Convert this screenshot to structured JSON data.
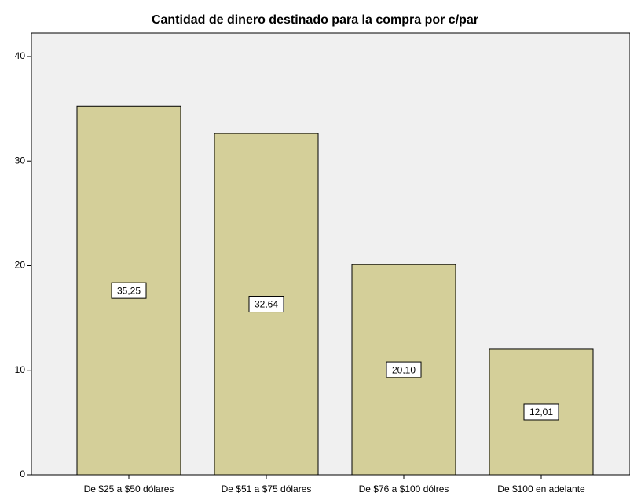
{
  "chart_data": {
    "type": "bar",
    "title": "Cantidad de dinero destinado para la compra por c/par",
    "categories": [
      "De $25 a $50 dólares",
      "De $51 a $75 dólares",
      "De $76 a $100 dólres",
      "De $100 en adelante"
    ],
    "values": [
      35.25,
      32.64,
      20.1,
      12.01
    ],
    "value_labels": [
      "35,25",
      "32,64",
      "20,10",
      "12,01"
    ],
    "color": "#d4cf99",
    "ylim": [
      0,
      42.25
    ],
    "yticks": [
      0,
      10,
      20,
      30,
      40
    ],
    "grid": false
  }
}
